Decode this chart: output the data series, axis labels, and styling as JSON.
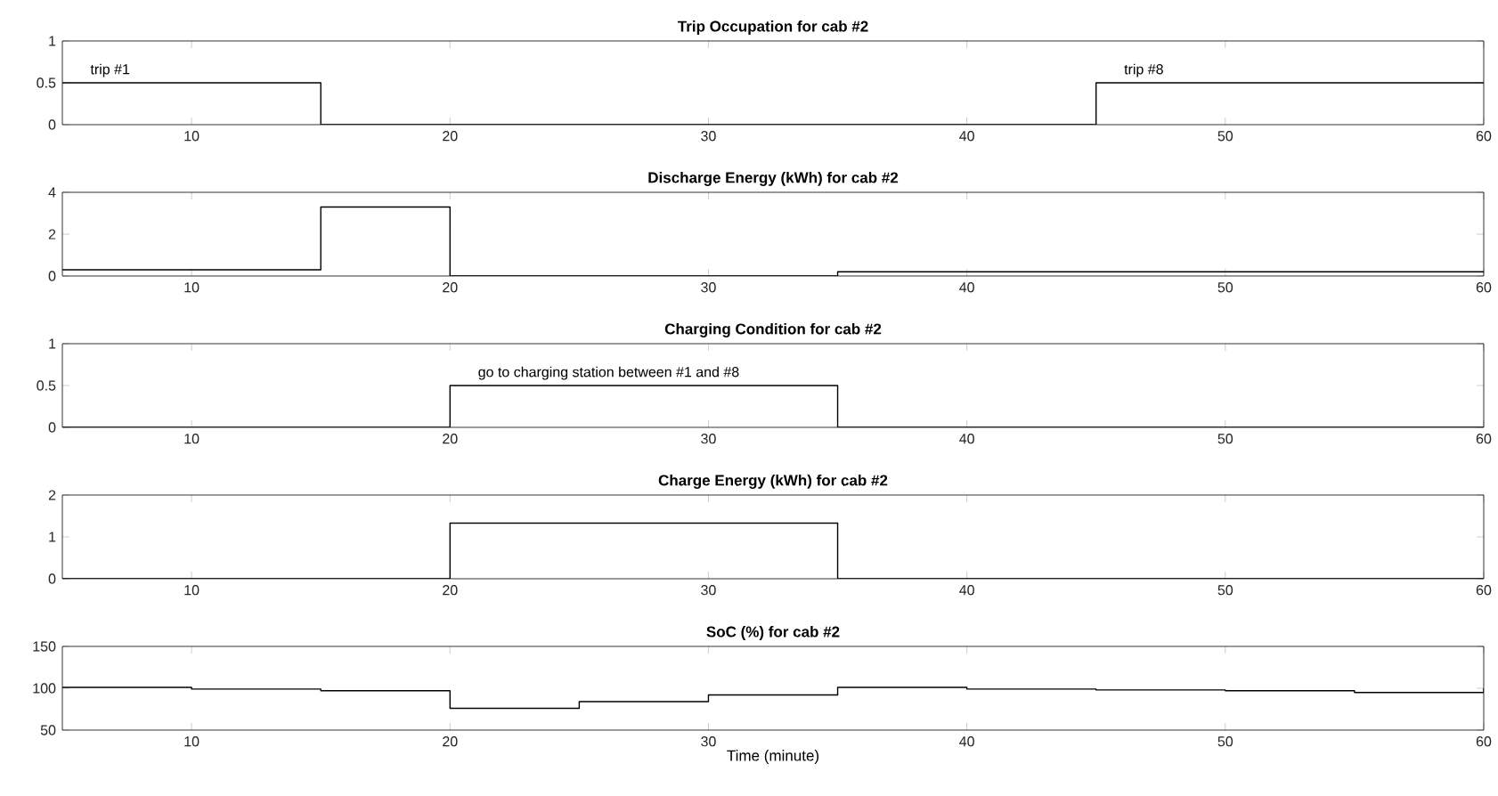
{
  "chart_data": [
    {
      "type": "step",
      "title": "Trip Occupation for cab #2",
      "x": [
        5,
        10,
        15,
        20,
        25,
        30,
        35,
        40,
        45,
        50,
        55,
        60
      ],
      "series": [
        {
          "color": "#000000",
          "values": [
            0.5,
            0.5,
            0,
            0,
            0,
            0,
            0,
            0,
            0.5,
            0.5,
            0.5,
            0.5
          ]
        }
      ],
      "xlim": [
        5,
        60
      ],
      "ylim": [
        0,
        1
      ],
      "xticks": [
        10,
        20,
        30,
        40,
        50,
        60
      ],
      "yticks": [
        0,
        0.5,
        1
      ],
      "annotations": [
        {
          "text": "trip #1",
          "x": 6,
          "y": 0.5
        },
        {
          "text": "trip #8",
          "x": 46,
          "y": 0.5
        }
      ]
    },
    {
      "type": "step",
      "title": "Discharge Energy (kWh) for cab #2",
      "x": [
        5,
        10,
        15,
        20,
        25,
        30,
        35,
        40,
        45,
        50,
        55,
        60
      ],
      "series": [
        {
          "color": "#000000",
          "values": [
            0.3,
            0.3,
            3.3,
            0,
            0,
            0,
            0.2,
            0.2,
            0.2,
            0.2,
            0.2,
            0.2
          ]
        }
      ],
      "xlim": [
        5,
        60
      ],
      "ylim": [
        0,
        4
      ],
      "xticks": [
        10,
        20,
        30,
        40,
        50,
        60
      ],
      "yticks": [
        0,
        2,
        4
      ]
    },
    {
      "type": "step",
      "title": "Charging Condition for cab #2",
      "x": [
        5,
        10,
        15,
        20,
        25,
        30,
        35,
        40,
        45,
        50,
        55,
        60
      ],
      "series": [
        {
          "color": "#000000",
          "values": [
            0,
            0,
            0,
            0.5,
            0.5,
            0.5,
            0,
            0,
            0,
            0,
            0,
            0
          ]
        }
      ],
      "xlim": [
        5,
        60
      ],
      "ylim": [
        0,
        1
      ],
      "xticks": [
        10,
        20,
        30,
        40,
        50,
        60
      ],
      "yticks": [
        0,
        0.5,
        1
      ],
      "annotations": [
        {
          "text": "go to charging station between #1 and #8",
          "x": 21,
          "y": 0.5
        }
      ]
    },
    {
      "type": "step",
      "title": "Charge Energy (kWh) for cab #2",
      "x": [
        5,
        10,
        15,
        20,
        25,
        30,
        35,
        40,
        45,
        50,
        55,
        60
      ],
      "series": [
        {
          "color": "#000000",
          "values": [
            0,
            0,
            0,
            1.33,
            1.33,
            1.33,
            0,
            0,
            0,
            0,
            0,
            0
          ]
        }
      ],
      "xlim": [
        5,
        60
      ],
      "ylim": [
        0,
        2
      ],
      "xticks": [
        10,
        20,
        30,
        40,
        50,
        60
      ],
      "yticks": [
        0,
        1,
        2
      ]
    },
    {
      "type": "step",
      "title": "SoC (%) for cab #2",
      "xlabel": "Time (minute)",
      "x": [
        5,
        10,
        15,
        20,
        25,
        30,
        35,
        40,
        45,
        50,
        55,
        60
      ],
      "series": [
        {
          "color": "#000000",
          "values": [
            101,
            99,
            97,
            76,
            84,
            92,
            101,
            99,
            98,
            97,
            95,
            100
          ]
        }
      ],
      "xlim": [
        5,
        60
      ],
      "ylim": [
        50,
        150
      ],
      "xticks": [
        10,
        20,
        30,
        40,
        50,
        60
      ],
      "yticks": [
        50,
        100,
        150
      ]
    }
  ]
}
